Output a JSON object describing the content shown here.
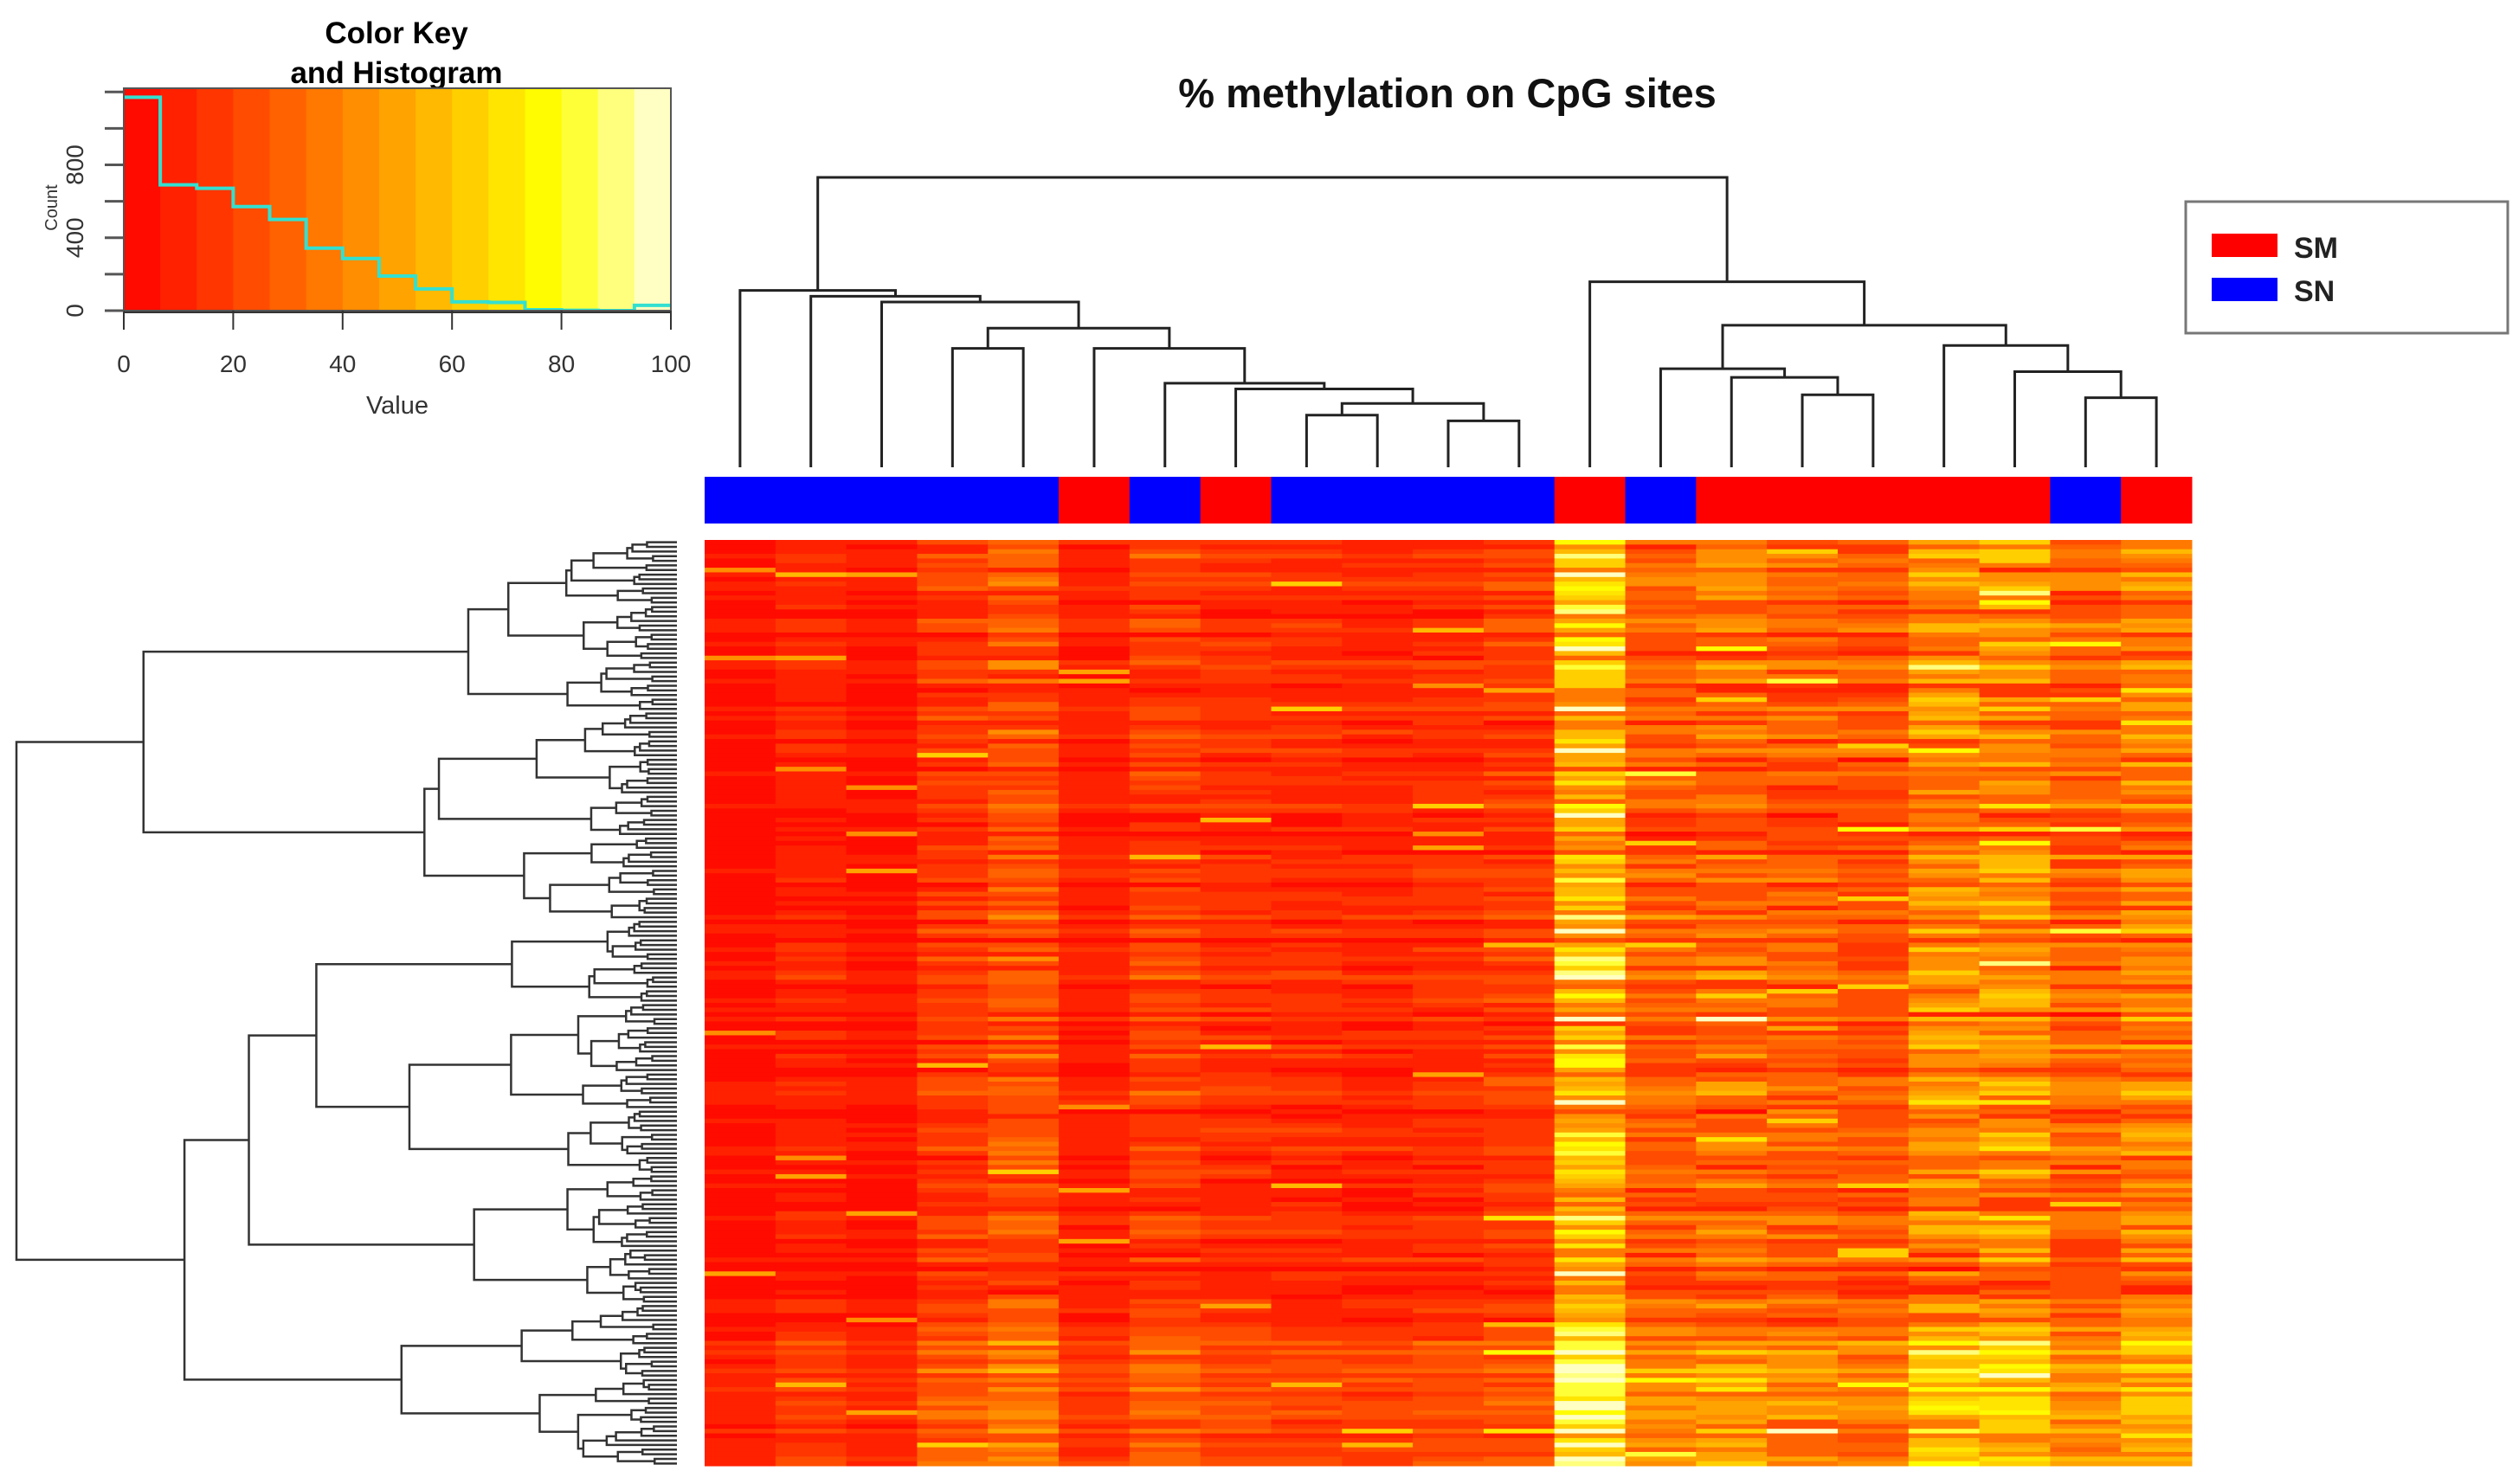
{
  "chart_data": {
    "type": "heatmap",
    "title": "% methylation on CpG sites",
    "color_key": {
      "title_line1": "Color Key",
      "title_line2": "and Histogram",
      "xlabel": "Value",
      "ylabel": "Count",
      "xlim": [
        0,
        100
      ],
      "ylim": [
        0,
        1220
      ],
      "x_ticks": [
        "0",
        "20",
        "40",
        "60",
        "80",
        "100"
      ],
      "y_ticks_labeled": [
        "0",
        "400",
        "800"
      ],
      "y_tick_values": [
        0,
        200,
        400,
        600,
        800,
        1000,
        1200
      ],
      "histogram_bin_edges_step": 6.667,
      "histogram_counts": [
        1171,
        690,
        671,
        571,
        500,
        343,
        286,
        190,
        119,
        48,
        45,
        5,
        2,
        0,
        29
      ],
      "histogram_color": "#33e0d0"
    },
    "legend": {
      "placement": "top-right",
      "items": [
        {
          "label": "SM",
          "color": "#ff0000"
        },
        {
          "label": "SN",
          "color": "#0000ff"
        }
      ]
    },
    "columns": {
      "groups": [
        "SN",
        "SN",
        "SN",
        "SN",
        "SN",
        "SM",
        "SN",
        "SM",
        "SN",
        "SN",
        "SN",
        "SN",
        "SM",
        "SN",
        "SM",
        "SM",
        "SM",
        "SM",
        "SM",
        "SN",
        "SM"
      ],
      "mean_values": [
        4,
        9,
        5,
        15,
        22,
        8,
        16,
        12,
        11,
        10,
        12,
        15,
        52,
        24,
        28,
        24,
        22,
        36,
        37,
        25,
        33
      ]
    },
    "row_count": 200,
    "col_dendrogram_merges": [
      [
        -4,
        -5,
        0.41
      ],
      [
        -9,
        -10,
        0.18
      ],
      [
        -11,
        -12,
        0.16
      ],
      [
        2,
        3,
        0.22
      ],
      [
        -8,
        4,
        0.27
      ],
      [
        -7,
        5,
        0.29
      ],
      [
        -6,
        6,
        0.41
      ],
      [
        1,
        7,
        0.48
      ],
      [
        -3,
        8,
        0.57
      ],
      [
        -2,
        9,
        0.59
      ],
      [
        -1,
        10,
        0.61
      ],
      [
        -16,
        -17,
        0.25
      ],
      [
        -15,
        12,
        0.31
      ],
      [
        -14,
        13,
        0.34
      ],
      [
        -20,
        -21,
        0.24
      ],
      [
        -19,
        15,
        0.33
      ],
      [
        -18,
        16,
        0.42
      ],
      [
        14,
        17,
        0.49
      ],
      [
        -13,
        18,
        0.64
      ],
      [
        11,
        19,
        1.0
      ]
    ]
  }
}
